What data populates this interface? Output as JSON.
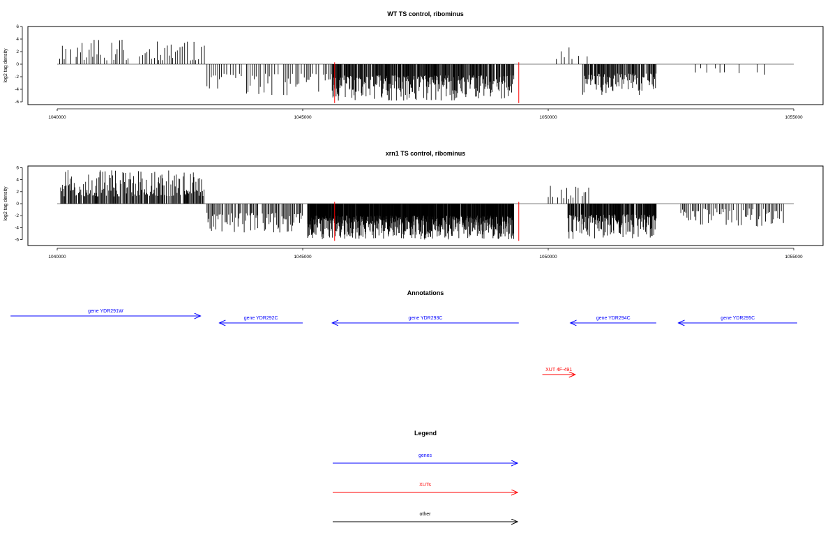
{
  "chart_data": [
    {
      "type": "bar",
      "title": "WT TS control, ribominus",
      "ylabel": "log2 tag density",
      "xlim": [
        1040000,
        1055000
      ],
      "ylim": [
        -6,
        6
      ],
      "x_ticks": [
        "1040000",
        "1045000",
        "1050000",
        "1055000"
      ],
      "y_ticks": [
        "6",
        "4",
        "2",
        "0",
        "-2",
        "-4",
        "-6"
      ],
      "series": [
        {
          "color": "#000000",
          "segments": [
            {
              "start": 1040050,
              "end": 1043000,
              "sign": 1,
              "step": 45,
              "max": 3.9,
              "min": 0.6
            },
            {
              "start": 1043050,
              "end": 1045750,
              "sign": -1,
              "step": 40,
              "max": 5.0,
              "min": 1.5
            },
            {
              "start": 1045600,
              "end": 1049300,
              "sign": -1,
              "step": 12,
              "max": 5.8,
              "min": 1.8
            },
            {
              "start": 1050000,
              "end": 1050800,
              "sign": 1,
              "step": 70,
              "max": 3.2,
              "min": 0.8
            },
            {
              "start": 1050700,
              "end": 1052200,
              "sign": -1,
              "step": 14,
              "max": 4.9,
              "min": 1.5
            },
            {
              "start": 1052800,
              "end": 1054800,
              "sign": -1,
              "step": 90,
              "max": 2.5,
              "min": 0.6
            }
          ]
        },
        {
          "color": "#ff0000",
          "marks": [
            {
              "x": 1045650,
              "y": -6.2
            },
            {
              "x": 1049400,
              "y": -6.2
            }
          ]
        }
      ]
    },
    {
      "type": "bar",
      "title": "xrn1 TS control, ribominus",
      "ylabel": "log2 tag density",
      "xlim": [
        1040000,
        1055000
      ],
      "ylim": [
        -6,
        6
      ],
      "x_ticks": [
        "1040000",
        "1045000",
        "1050000",
        "1055000"
      ],
      "y_ticks": [
        "6",
        "4",
        "2",
        "0",
        "-2",
        "-4",
        "-6"
      ],
      "series": [
        {
          "color": "#000000",
          "segments": [
            {
              "start": 1040050,
              "end": 1043000,
              "sign": 1,
              "step": 16,
              "max": 5.6,
              "min": 1.2
            },
            {
              "start": 1043050,
              "end": 1045000,
              "sign": -1,
              "step": 22,
              "max": 5.0,
              "min": 1.5
            },
            {
              "start": 1045100,
              "end": 1049300,
              "sign": -1,
              "step": 6,
              "max": 6.0,
              "min": 2.0
            },
            {
              "start": 1050000,
              "end": 1050900,
              "sign": 1,
              "step": 45,
              "max": 3.2,
              "min": 0.8
            },
            {
              "start": 1050400,
              "end": 1052200,
              "sign": -1,
              "step": 10,
              "max": 5.9,
              "min": 1.8
            },
            {
              "start": 1052700,
              "end": 1054800,
              "sign": -1,
              "step": 30,
              "max": 3.8,
              "min": 0.8
            }
          ]
        },
        {
          "color": "#ff0000",
          "marks": [
            {
              "x": 1045650,
              "y": -6.2
            },
            {
              "x": 1049400,
              "y": -6.2
            }
          ]
        }
      ]
    }
  ],
  "annotations": {
    "title": "Annotations",
    "genes": [
      {
        "label": "gene YDR291W",
        "start": 1039050,
        "end": 1042920,
        "color": "#0000ff",
        "row": 0
      },
      {
        "label": "gene YDR292C",
        "start": 1043300,
        "end": 1045000,
        "color": "#0000ff",
        "row": 1
      },
      {
        "label": "gene YDR293C",
        "start": 1045600,
        "end": 1049400,
        "color": "#0000ff",
        "row": 1
      },
      {
        "label": "gene YDR294C",
        "start": 1050450,
        "end": 1052200,
        "color": "#0000ff",
        "row": 1
      },
      {
        "label": "gene YDR295C",
        "start": 1052650,
        "end": 1055070,
        "color": "#0000ff",
        "row": 1
      },
      {
        "label": "XUT 4F-491",
        "start": 1049880,
        "end": 1050550,
        "color": "#ff0000",
        "row": 2
      }
    ]
  },
  "legend": {
    "title": "Legend",
    "items": [
      {
        "label": "genes",
        "color": "#0000ff"
      },
      {
        "label": "XUTs",
        "color": "#ff0000"
      },
      {
        "label": "other",
        "color": "#000000"
      }
    ]
  }
}
